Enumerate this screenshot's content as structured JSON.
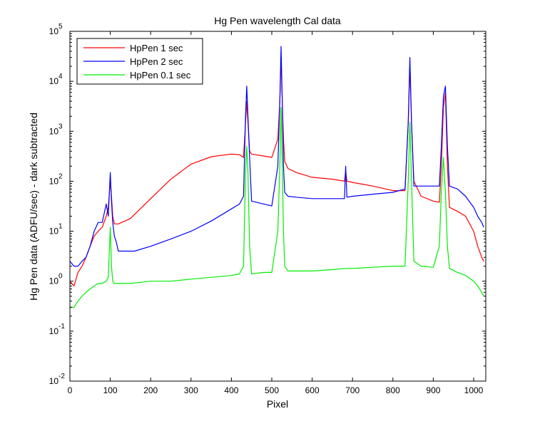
{
  "chart_data": {
    "type": "line",
    "title": "Hg Pen wavelength Cal data",
    "xlabel": "Pixel",
    "ylabel": "Hg Pen data (ADFU/sec) - dark subtracted",
    "xlim": [
      0,
      1030
    ],
    "ylim": [
      0.01,
      100000
    ],
    "yscale": "log",
    "x_ticks": [
      {
        "value": 0,
        "label": "0"
      },
      {
        "value": 100,
        "label": "100"
      },
      {
        "value": 200,
        "label": "200"
      },
      {
        "value": 300,
        "label": "300"
      },
      {
        "value": 400,
        "label": "400"
      },
      {
        "value": 500,
        "label": "500"
      },
      {
        "value": 600,
        "label": "600"
      },
      {
        "value": 700,
        "label": "700"
      },
      {
        "value": 800,
        "label": "800"
      },
      {
        "value": 900,
        "label": "900"
      },
      {
        "value": 1000,
        "label": "1000"
      }
    ],
    "y_ticks": [
      {
        "value": 0.01,
        "base": "10",
        "exp": "-2"
      },
      {
        "value": 0.1,
        "base": "10",
        "exp": "-1"
      },
      {
        "value": 1,
        "base": "10",
        "exp": "0"
      },
      {
        "value": 10,
        "base": "10",
        "exp": "1"
      },
      {
        "value": 100,
        "base": "10",
        "exp": "2"
      },
      {
        "value": 1000,
        "base": "10",
        "exp": "3"
      },
      {
        "value": 10000,
        "base": "10",
        "exp": "4"
      },
      {
        "value": 100000,
        "base": "10",
        "exp": "5"
      }
    ],
    "grid": false,
    "legend_position": "top-left",
    "series": [
      {
        "name": "HpPen 1 sec",
        "color": "#ff0000",
        "x": [
          0,
          10,
          20,
          30,
          40,
          50,
          60,
          70,
          80,
          90,
          95,
          100,
          103,
          106,
          110,
          115,
          120,
          150,
          200,
          250,
          300,
          350,
          400,
          420,
          430,
          435,
          438,
          441,
          445,
          450,
          480,
          500,
          515,
          520,
          523,
          526,
          529,
          532,
          540,
          560,
          600,
          650,
          680,
          683,
          686,
          700,
          750,
          800,
          830,
          838,
          842,
          846,
          852,
          870,
          900,
          915,
          920,
          925,
          930,
          935,
          940,
          960,
          980,
          1000,
          1010,
          1020,
          1025
        ],
        "y": [
          1.0,
          0.8,
          1.5,
          2,
          3,
          5,
          8,
          10,
          12,
          20,
          30,
          100,
          50,
          20,
          14,
          14,
          14,
          18,
          45,
          110,
          220,
          310,
          350,
          340,
          300,
          1500,
          4000,
          1500,
          400,
          350,
          320,
          300,
          700,
          4000,
          30000,
          4000,
          700,
          250,
          180,
          150,
          120,
          110,
          100,
          160,
          100,
          95,
          80,
          65,
          65,
          1500,
          20000,
          1500,
          100,
          50,
          40,
          38,
          200,
          3000,
          6000,
          200,
          30,
          25,
          20,
          10,
          5,
          3,
          2.5
        ]
      },
      {
        "name": "HpPen 2 sec",
        "color": "#0000ff",
        "x": [
          0,
          10,
          20,
          30,
          40,
          50,
          60,
          70,
          80,
          90,
          95,
          100,
          103,
          106,
          110,
          115,
          120,
          140,
          160,
          200,
          250,
          300,
          350,
          400,
          420,
          430,
          435,
          438,
          441,
          445,
          450,
          480,
          500,
          515,
          520,
          523,
          526,
          529,
          532,
          540,
          560,
          600,
          650,
          680,
          683,
          686,
          700,
          750,
          800,
          830,
          838,
          842,
          846,
          852,
          870,
          900,
          915,
          920,
          925,
          930,
          935,
          940,
          960,
          980,
          1000,
          1010,
          1020,
          1025
        ],
        "y": [
          2.5,
          2.0,
          2.0,
          2.5,
          3,
          5,
          10,
          15,
          15,
          35,
          20,
          150,
          40,
          15,
          8,
          6,
          4,
          4,
          4,
          5,
          7,
          10,
          16,
          28,
          35,
          50,
          2000,
          8000,
          2000,
          300,
          40,
          35,
          32,
          200,
          4000,
          50000,
          4000,
          200,
          60,
          50,
          48,
          45,
          45,
          45,
          200,
          48,
          50,
          55,
          60,
          70,
          1500,
          30000,
          1500,
          80,
          80,
          80,
          80,
          500,
          5000,
          8000,
          500,
          80,
          70,
          50,
          30,
          20,
          15,
          12
        ]
      },
      {
        "name": "HpPen 0.1 sec",
        "color": "#00ee00",
        "x": [
          0,
          10,
          20,
          30,
          40,
          50,
          60,
          70,
          80,
          90,
          95,
          100,
          103,
          106,
          110,
          115,
          120,
          150,
          200,
          250,
          300,
          350,
          400,
          420,
          430,
          435,
          438,
          441,
          445,
          450,
          480,
          500,
          515,
          520,
          523,
          526,
          529,
          532,
          540,
          560,
          600,
          650,
          680,
          700,
          750,
          800,
          830,
          838,
          842,
          846,
          852,
          870,
          900,
          915,
          920,
          925,
          930,
          935,
          940,
          960,
          980,
          1000,
          1010,
          1020,
          1025
        ],
        "y": [
          0.3,
          0.3,
          0.4,
          0.5,
          0.6,
          0.7,
          0.8,
          0.9,
          0.9,
          1.0,
          1.2,
          12,
          2,
          1.0,
          0.9,
          0.9,
          0.9,
          0.9,
          1.0,
          1.0,
          1.1,
          1.2,
          1.3,
          1.4,
          2,
          150,
          500,
          150,
          5,
          1.4,
          1.5,
          1.5,
          10,
          200,
          3000,
          200,
          10,
          2,
          1.6,
          1.6,
          1.6,
          1.7,
          1.8,
          1.8,
          1.9,
          2.0,
          2.0,
          100,
          1500,
          100,
          2.5,
          2.0,
          1.9,
          5,
          60,
          300,
          60,
          5,
          1.8,
          1.5,
          1.3,
          1.0,
          0.8,
          0.6,
          0.5
        ]
      }
    ]
  }
}
